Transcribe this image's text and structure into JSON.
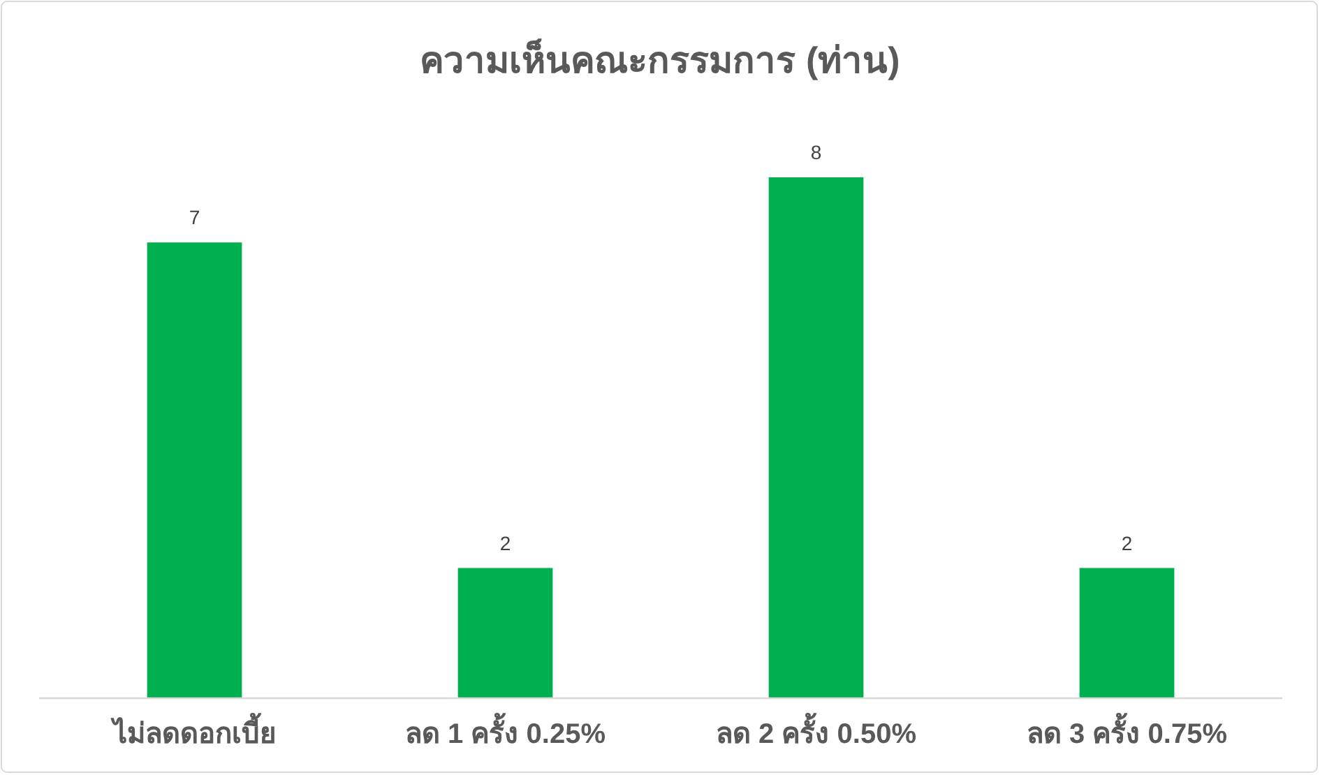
{
  "chart_data": {
    "type": "bar",
    "title": "ความเห็นคณะกรรมการ (ท่าน)",
    "categories": [
      "ไม่ลดดอกเบี้ย",
      "ลด 1 ครั้ง 0.25%",
      "ลด 2 ครั้ง 0.50%",
      "ลด 3 ครั้ง 0.75%"
    ],
    "values": [
      7,
      2,
      8,
      2
    ],
    "color": "#00b050",
    "data_labels": true
  }
}
